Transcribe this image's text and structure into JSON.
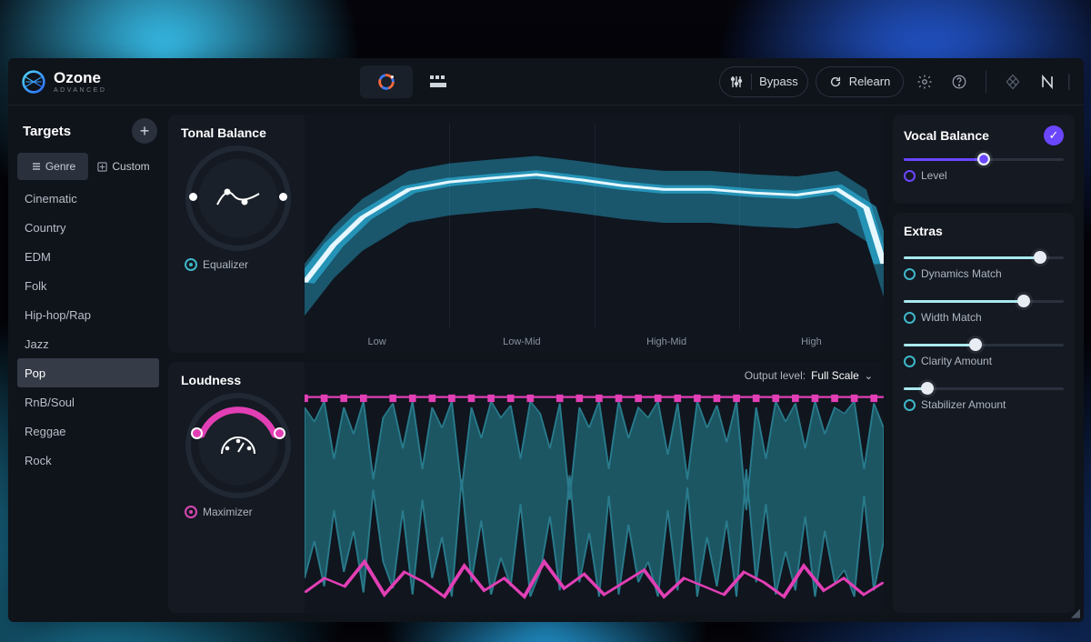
{
  "product": {
    "name": "Ozone",
    "edition": "ADVANCED"
  },
  "colors": {
    "accent_cyan": "#3fd6e8",
    "accent_cyan_fill": "#a9e8ef",
    "accent_magenta": "#e23fb5",
    "accent_purple": "#6b46ff",
    "panel": "#141922",
    "app_bg": "#0f131a",
    "text": "#d8dde3",
    "text_muted": "#8a929e",
    "grid": "#1c2330"
  },
  "titlebar": {
    "bypass": "Bypass",
    "relearn": "Relearn"
  },
  "sidebar": {
    "title": "Targets",
    "tabs": {
      "genre": "Genre",
      "custom": "Custom",
      "active": "genre"
    },
    "genres": [
      "Cinematic",
      "Country",
      "EDM",
      "Folk",
      "Hip-hop/Rap",
      "Jazz",
      "Pop",
      "RnB/Soul",
      "Reggae",
      "Rock"
    ],
    "selected": "Pop"
  },
  "tonal_balance": {
    "title": "Tonal Balance",
    "module_label": "Equalizer",
    "bands": [
      "Low",
      "Low-Mid",
      "High-Mid",
      "High"
    ],
    "curve_color": "#e6f7ff",
    "glow_color": "#2fd0ff",
    "curve": [
      [
        0,
        0.8
      ],
      [
        0.05,
        0.6
      ],
      [
        0.1,
        0.45
      ],
      [
        0.18,
        0.3
      ],
      [
        0.25,
        0.26
      ],
      [
        0.32,
        0.24
      ],
      [
        0.4,
        0.22
      ],
      [
        0.48,
        0.25
      ],
      [
        0.55,
        0.28
      ],
      [
        0.62,
        0.3
      ],
      [
        0.7,
        0.3
      ],
      [
        0.78,
        0.32
      ],
      [
        0.85,
        0.33
      ],
      [
        0.92,
        0.3
      ],
      [
        0.97,
        0.4
      ],
      [
        1.0,
        0.7
      ]
    ]
  },
  "loudness": {
    "title": "Loudness",
    "module_label": "Maximizer",
    "output_label": "Output level:",
    "output_value": "Full Scale",
    "ceiling_color": "#e23fb5",
    "wave_fill": "#1f5e6b",
    "wave_stroke": "#2c8798",
    "bottom_trace": "#e23fb5",
    "arc_fill": "#e23fb5",
    "waveform_top": [
      0.05,
      0.12,
      0.02,
      0.3,
      0.05,
      0.18,
      0.02,
      0.4,
      0.1,
      0.03,
      0.25,
      0.02,
      0.35,
      0.05,
      0.15,
      0.02,
      0.45,
      0.05,
      0.2,
      0.02,
      0.1,
      0.04,
      0.3,
      0.02,
      0.08,
      0.25,
      0.03,
      0.5,
      0.05,
      0.15,
      0.02,
      0.35,
      0.02,
      0.2,
      0.05,
      0.1,
      0.02,
      0.28,
      0.03,
      0.4,
      0.02,
      0.15,
      0.04,
      0.22,
      0.02,
      0.55,
      0.05,
      0.3,
      0.02,
      0.12,
      0.03,
      0.25,
      0.02,
      0.18,
      0.05,
      0.08,
      0.02,
      0.35,
      0.03,
      0.15
    ],
    "waveform_bot": [
      0.88,
      0.7,
      0.92,
      0.55,
      0.85,
      0.65,
      0.95,
      0.45,
      0.8,
      0.93,
      0.55,
      0.96,
      0.5,
      0.88,
      0.68,
      0.97,
      0.4,
      0.9,
      0.6,
      0.96,
      0.78,
      0.92,
      0.52,
      0.97,
      0.85,
      0.58,
      0.94,
      0.38,
      0.9,
      0.66,
      0.97,
      0.48,
      0.96,
      0.62,
      0.9,
      0.8,
      0.97,
      0.55,
      0.94,
      0.44,
      0.97,
      0.68,
      0.92,
      0.6,
      0.97,
      0.35,
      0.9,
      0.52,
      0.96,
      0.75,
      0.94,
      0.58,
      0.97,
      0.65,
      0.9,
      0.84,
      0.97,
      0.48,
      0.94,
      0.7
    ],
    "bottom_trace_pts": [
      0.95,
      0.88,
      0.92,
      0.8,
      0.96,
      0.85,
      0.9,
      0.97,
      0.82,
      0.94,
      0.88,
      0.97,
      0.8,
      0.93,
      0.86,
      0.96,
      0.9,
      0.84,
      0.97,
      0.88,
      0.92,
      0.96,
      0.85,
      0.9,
      0.97,
      0.82,
      0.94,
      0.88,
      0.96,
      0.9
    ]
  },
  "vocal_balance": {
    "title": "Vocal Balance",
    "checked": true,
    "level_label": "Level",
    "level_value": 0.5,
    "track_color": "#6b46ff"
  },
  "extras": {
    "title": "Extras",
    "sliders": [
      {
        "label": "Dynamics Match",
        "value": 0.85
      },
      {
        "label": "Width Match",
        "value": 0.75
      },
      {
        "label": "Clarity Amount",
        "value": 0.45
      },
      {
        "label": "Stabilizer Amount",
        "value": 0.15
      }
    ],
    "fill_color": "#a9e8ef"
  }
}
